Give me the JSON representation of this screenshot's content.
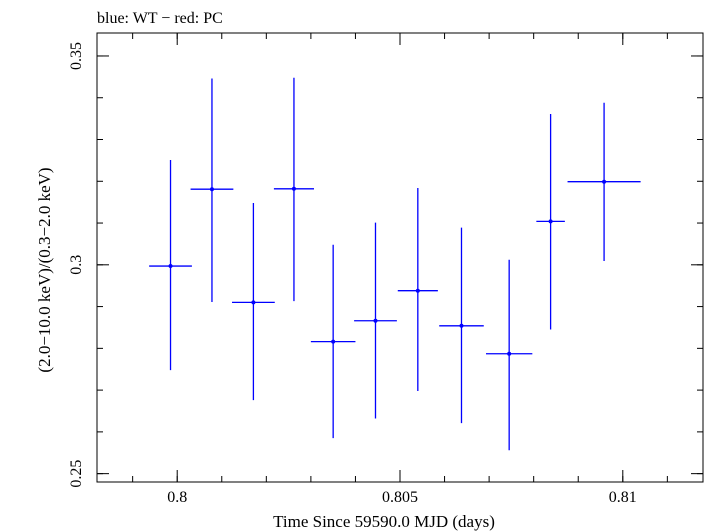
{
  "chart_data": {
    "type": "scatter",
    "title": "blue: WT − red: PC",
    "xlabel": "Time Since 59590.0 MJD (days)",
    "ylabel": "(2.0−10.0 keV)/(0.3−2.0 keV)",
    "xlim": [
      0.7982,
      0.8118
    ],
    "ylim": [
      0.248,
      0.3555
    ],
    "x_ticks": [
      {
        "value": 0.8,
        "label": "0.8"
      },
      {
        "value": 0.805,
        "label": "0.805"
      },
      {
        "value": 0.81,
        "label": "0.81"
      }
    ],
    "y_ticks": [
      {
        "value": 0.25,
        "label": "0.25"
      },
      {
        "value": 0.3,
        "label": "0.3"
      },
      {
        "value": 0.35,
        "label": "0.35"
      }
    ],
    "x_minor_step": 0.001,
    "y_minor_step": 0.01,
    "grid": false,
    "series": [
      {
        "color": "#0000ff",
        "points": [
          {
            "x": 0.79985,
            "y": 0.2997,
            "xerr": 0.00048,
            "ylo": 0.2748,
            "yhi": 0.3251
          },
          {
            "x": 0.80078,
            "y": 0.3181,
            "xerr": 0.00048,
            "ylo": 0.2911,
            "yhi": 0.3446
          },
          {
            "x": 0.80171,
            "y": 0.291,
            "xerr": 0.00048,
            "ylo": 0.2676,
            "yhi": 0.3148
          },
          {
            "x": 0.80262,
            "y": 0.3182,
            "xerr": 0.00045,
            "ylo": 0.2913,
            "yhi": 0.3448
          },
          {
            "x": 0.8035,
            "y": 0.2816,
            "xerr": 0.0005,
            "ylo": 0.2585,
            "yhi": 0.3048
          },
          {
            "x": 0.80445,
            "y": 0.2866,
            "xerr": 0.00048,
            "ylo": 0.2632,
            "yhi": 0.3101
          },
          {
            "x": 0.8054,
            "y": 0.2938,
            "xerr": 0.00045,
            "ylo": 0.2698,
            "yhi": 0.3184
          },
          {
            "x": 0.80638,
            "y": 0.2854,
            "xerr": 0.0005,
            "ylo": 0.2621,
            "yhi": 0.3089
          },
          {
            "x": 0.80745,
            "y": 0.2787,
            "xerr": 0.00052,
            "ylo": 0.2556,
            "yhi": 0.3012
          },
          {
            "x": 0.80838,
            "y": 0.3104,
            "xerr": 0.00032,
            "ylo": 0.2845,
            "yhi": 0.3361
          },
          {
            "x": 0.80958,
            "y": 0.3199,
            "xerr": 0.00082,
            "ylo": 0.3009,
            "yhi": 0.3388
          }
        ]
      }
    ]
  }
}
